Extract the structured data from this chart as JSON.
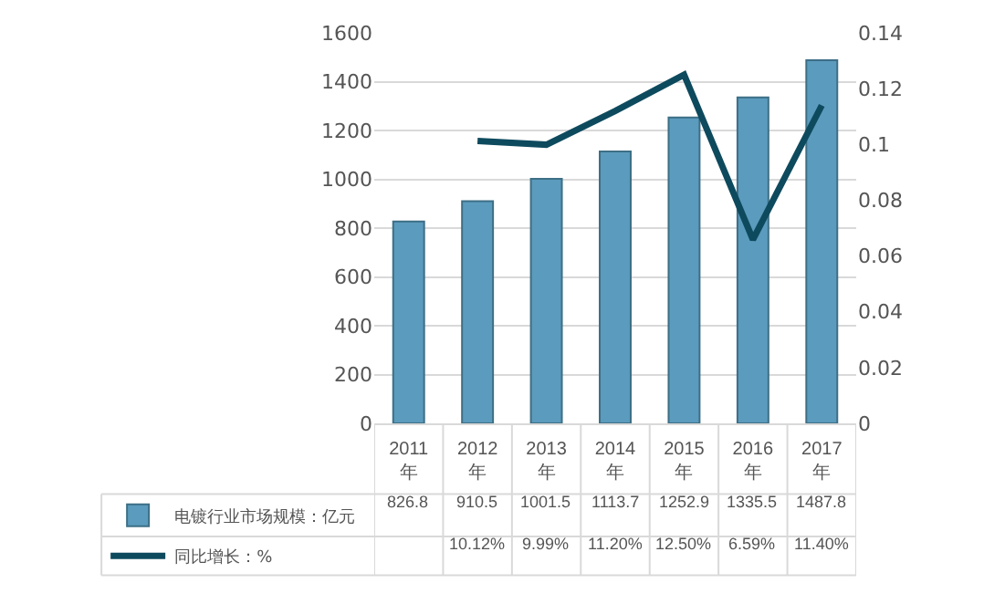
{
  "chart_data": {
    "type": "bar",
    "categories": [
      "2011年",
      "2012年",
      "2013年",
      "2014年",
      "2015年",
      "2016年",
      "2017年"
    ],
    "series": [
      {
        "name": "电镀行业市场规模：亿元",
        "color": "#5b9bbd",
        "values": [
          826.8,
          910.5,
          1001.5,
          1113.7,
          1252.9,
          1335.5,
          1487.8
        ]
      },
      {
        "name": "同比增长：%",
        "type": "line",
        "axis": "y2",
        "color": "#0e4a5e",
        "values": [
          null,
          0.1012,
          0.0999,
          0.112,
          0.125,
          0.0659,
          0.114
        ],
        "value_labels": [
          null,
          "10.12%",
          "9.99%",
          "11.20%",
          "12.50%",
          "6.59%",
          "11.40%"
        ]
      }
    ],
    "data_labels": true,
    "ylim": [
      0,
      1600
    ],
    "yticks": [
      0,
      200,
      400,
      600,
      800,
      1000,
      1200,
      1400,
      1600
    ],
    "y2lim": [
      0,
      0.14
    ],
    "y2ticks": [
      0,
      0.02,
      0.04,
      0.06,
      0.08,
      0.1,
      0.12,
      0.14
    ],
    "grid": "y",
    "legend": "bottom",
    "marker": "none",
    "line_style": "solid"
  }
}
